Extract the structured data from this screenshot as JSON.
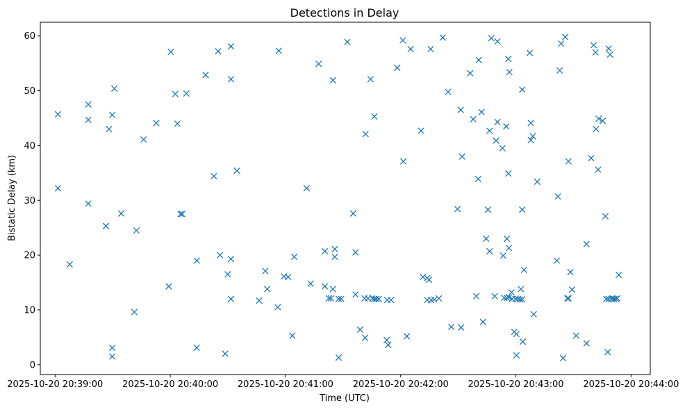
{
  "chart_data": {
    "type": "scatter",
    "title": "Detections in Delay",
    "xlabel": "Time (UTC)",
    "ylabel": "Bistatic Delay (km)",
    "marker": "x",
    "color": "#1f77b4",
    "x_unit": "seconds after 2025-10-20 20:39:00 UTC",
    "xlim": [
      -7.7,
      310
    ],
    "ylim": [
      -1.8,
      62.5
    ],
    "xticks": [
      0,
      60,
      120,
      180,
      240,
      300
    ],
    "xtick_labels": [
      "2025-10-20 20:39:00",
      "2025-10-20 20:40:00",
      "2025-10-20 20:41:00",
      "2025-10-20 20:42:00",
      "2025-10-20 20:43:00",
      "2025-10-20 20:44:00"
    ],
    "yticks": [
      0,
      10,
      20,
      30,
      40,
      50,
      60
    ],
    "ytick_labels": [
      "0",
      "10",
      "20",
      "30",
      "40",
      "50",
      "60"
    ],
    "points": [
      [
        1.5,
        45.7
      ],
      [
        1.5,
        32.2
      ],
      [
        7.6,
        18.3
      ],
      [
        17.3,
        47.5
      ],
      [
        17.3,
        44.7
      ],
      [
        17.3,
        29.4
      ],
      [
        26.5,
        25.3
      ],
      [
        28.1,
        43.0
      ],
      [
        29.8,
        45.6
      ],
      [
        30.9,
        50.4
      ],
      [
        29.8,
        3.1
      ],
      [
        29.8,
        1.5
      ],
      [
        34.5,
        27.6
      ],
      [
        41.3,
        9.6
      ],
      [
        42.4,
        24.5
      ],
      [
        46.1,
        41.1
      ],
      [
        52.7,
        44.1
      ],
      [
        59.2,
        14.3
      ],
      [
        60.3,
        57.1
      ],
      [
        62.6,
        49.4
      ],
      [
        63.7,
        44.0
      ],
      [
        65.4,
        27.5
      ],
      [
        66.2,
        27.5
      ],
      [
        68.4,
        49.5
      ],
      [
        73.8,
        19.0
      ],
      [
        73.8,
        3.1
      ],
      [
        78.4,
        52.9
      ],
      [
        82.7,
        34.4
      ],
      [
        84.9,
        57.2
      ],
      [
        85.9,
        20.0
      ],
      [
        88.6,
        2.0
      ],
      [
        89.9,
        16.5
      ],
      [
        91.6,
        58.1
      ],
      [
        91.6,
        52.1
      ],
      [
        91.6,
        19.3
      ],
      [
        91.6,
        12.0
      ],
      [
        94.7,
        35.4
      ],
      [
        106.3,
        11.7
      ],
      [
        109.5,
        17.1
      ],
      [
        110.5,
        13.8
      ],
      [
        116.0,
        10.5
      ],
      [
        116.5,
        57.3
      ],
      [
        119.2,
        16.1
      ],
      [
        121.4,
        16.0
      ],
      [
        123.6,
        5.3
      ],
      [
        124.6,
        19.7
      ],
      [
        131.0,
        32.2
      ],
      [
        133.1,
        14.8
      ],
      [
        137.3,
        54.9
      ],
      [
        140.5,
        20.7
      ],
      [
        140.5,
        14.3
      ],
      [
        142.6,
        12.1
      ],
      [
        143.7,
        12.1
      ],
      [
        144.7,
        13.8
      ],
      [
        144.7,
        51.9
      ],
      [
        145.7,
        21.1
      ],
      [
        145.7,
        19.7
      ],
      [
        147.7,
        1.3
      ],
      [
        147.7,
        12.0
      ],
      [
        149.0,
        12.0
      ],
      [
        152.2,
        58.9
      ],
      [
        155.3,
        27.6
      ],
      [
        156.5,
        20.5
      ],
      [
        156.5,
        12.8
      ],
      [
        158.9,
        6.4
      ],
      [
        161.2,
        12.1
      ],
      [
        161.5,
        4.9
      ],
      [
        161.7,
        42.1
      ],
      [
        163.0,
        12.1
      ],
      [
        164.3,
        52.1
      ],
      [
        165.2,
        12.1
      ],
      [
        166.3,
        45.3
      ],
      [
        166.3,
        12.0
      ],
      [
        167.3,
        12.0
      ],
      [
        168.6,
        12.0
      ],
      [
        172.7,
        4.5
      ],
      [
        173.0,
        11.8
      ],
      [
        173.5,
        3.6
      ],
      [
        175.0,
        11.8
      ],
      [
        178.2,
        54.2
      ],
      [
        181.1,
        59.2
      ],
      [
        181.4,
        37.1
      ],
      [
        183.2,
        5.2
      ],
      [
        185.2,
        57.6
      ],
      [
        190.6,
        42.7
      ],
      [
        191.6,
        16.0
      ],
      [
        193.8,
        11.8
      ],
      [
        193.8,
        15.8
      ],
      [
        194.8,
        15.5
      ],
      [
        195.6,
        57.6
      ],
      [
        195.9,
        11.8
      ],
      [
        197.5,
        11.9
      ],
      [
        199.9,
        12.1
      ],
      [
        201.9,
        59.7
      ],
      [
        204.7,
        49.8
      ],
      [
        206.4,
        6.9
      ],
      [
        209.6,
        28.4
      ],
      [
        211.3,
        46.5
      ],
      [
        211.5,
        6.8
      ],
      [
        212.0,
        38.0
      ],
      [
        216.2,
        53.2
      ],
      [
        217.8,
        44.8
      ],
      [
        219.4,
        12.5
      ],
      [
        220.7,
        55.6
      ],
      [
        220.4,
        33.9
      ],
      [
        222.1,
        46.1
      ],
      [
        222.9,
        7.8
      ],
      [
        224.5,
        23.0
      ],
      [
        225.5,
        28.3
      ],
      [
        226.3,
        20.7
      ],
      [
        226.3,
        42.7
      ],
      [
        227.2,
        59.6
      ],
      [
        229.0,
        12.5
      ],
      [
        230.4,
        59.0
      ],
      [
        230.4,
        44.3
      ],
      [
        229.7,
        40.9
      ],
      [
        233.0,
        39.5
      ],
      [
        233.4,
        19.9
      ],
      [
        233.9,
        12.2
      ],
      [
        235.3,
        23.0
      ],
      [
        235.3,
        12.2
      ],
      [
        235.0,
        43.5
      ],
      [
        236.1,
        55.8
      ],
      [
        236.1,
        34.9
      ],
      [
        236.4,
        12.3
      ],
      [
        236.4,
        21.3
      ],
      [
        236.6,
        53.4
      ],
      [
        237.7,
        13.2
      ],
      [
        238.0,
        12.0
      ],
      [
        239.2,
        6.0
      ],
      [
        239.8,
        12.0
      ],
      [
        240.3,
        5.6
      ],
      [
        240.3,
        1.7
      ],
      [
        241.1,
        12.0
      ],
      [
        242.2,
        11.9
      ],
      [
        242.6,
        13.8
      ],
      [
        243.3,
        11.9
      ],
      [
        243.6,
        4.2
      ],
      [
        243.3,
        50.2
      ],
      [
        243.3,
        28.3
      ],
      [
        244.3,
        17.3
      ],
      [
        247.2,
        56.9
      ],
      [
        247.8,
        41.0
      ],
      [
        247.8,
        44.1
      ],
      [
        248.8,
        41.7
      ],
      [
        249.3,
        9.2
      ],
      [
        251.1,
        33.4
      ],
      [
        261.3,
        19.0
      ],
      [
        261.9,
        30.7
      ],
      [
        262.8,
        53.7
      ],
      [
        263.6,
        58.6
      ],
      [
        264.6,
        1.2
      ],
      [
        265.7,
        59.8
      ],
      [
        266.9,
        12.1
      ],
      [
        267.4,
        37.1
      ],
      [
        267.4,
        12.1
      ],
      [
        268.4,
        16.9
      ],
      [
        269.3,
        13.7
      ],
      [
        271.4,
        5.3
      ],
      [
        276.8,
        22.0
      ],
      [
        276.8,
        3.9
      ],
      [
        279.2,
        37.7
      ],
      [
        280.5,
        58.3
      ],
      [
        281.5,
        57.0
      ],
      [
        281.7,
        43.0
      ],
      [
        282.8,
        35.6
      ],
      [
        283.1,
        44.9
      ],
      [
        285.2,
        44.5
      ],
      [
        286.6,
        27.1
      ],
      [
        287.1,
        12.0
      ],
      [
        287.8,
        2.3
      ],
      [
        288.3,
        57.7
      ],
      [
        288.3,
        12.0
      ],
      [
        289.1,
        56.6
      ],
      [
        289.8,
        12.0
      ],
      [
        290.3,
        12.1
      ],
      [
        291.2,
        12.0
      ],
      [
        292.2,
        12.0
      ],
      [
        292.8,
        12.1
      ],
      [
        293.6,
        16.4
      ]
    ]
  }
}
